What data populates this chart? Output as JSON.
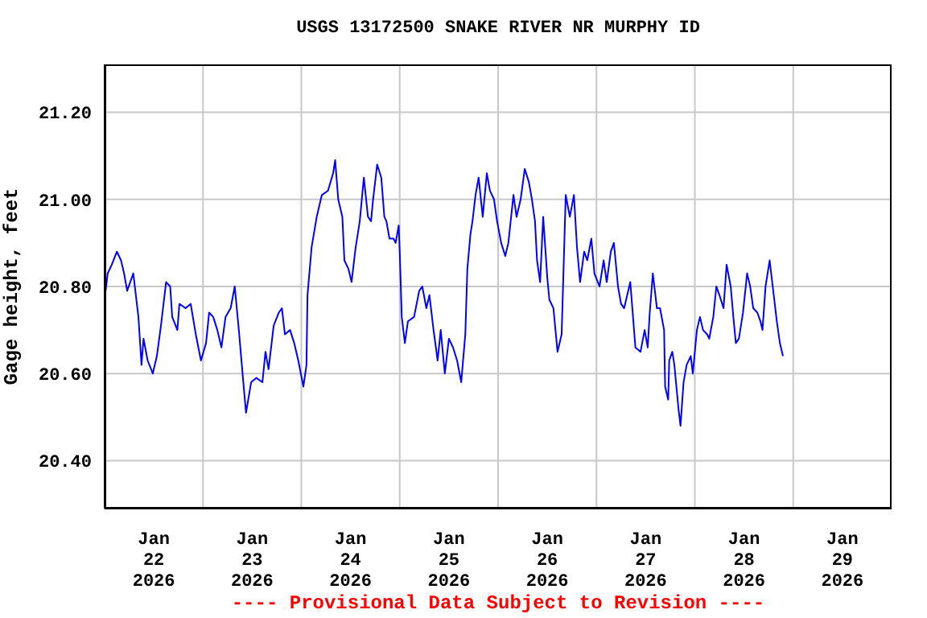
{
  "chart_data": {
    "type": "line",
    "title": "USGS 13172500 SNAKE RIVER NR MURPHY ID",
    "ylabel": "Gage height, feet",
    "annotations": [
      "---- Provisional Data Subject to Revision ----"
    ],
    "xlim": [
      "2026-01-22",
      "2026-01-30"
    ],
    "xticks": [
      {
        "value": "2026-01-22T12:00",
        "label": "Jan\n22\n2026"
      },
      {
        "value": "2026-01-23T00:00",
        "label": null
      },
      {
        "value": "2026-01-23T12:00",
        "label": "Jan\n23\n2026"
      },
      {
        "value": "2026-01-24T00:00",
        "label": null
      },
      {
        "value": "2026-01-24T12:00",
        "label": "Jan\n24\n2026"
      },
      {
        "value": "2026-01-25T00:00",
        "label": null
      },
      {
        "value": "2026-01-25T12:00",
        "label": "Jan\n25\n2026"
      },
      {
        "value": "2026-01-26T00:00",
        "label": null
      },
      {
        "value": "2026-01-26T12:00",
        "label": "Jan\n26\n2026"
      },
      {
        "value": "2026-01-27T00:00",
        "label": null
      },
      {
        "value": "2026-01-27T12:00",
        "label": "Jan\n27\n2026"
      },
      {
        "value": "2026-01-28T00:00",
        "label": null
      },
      {
        "value": "2026-01-28T12:00",
        "label": "Jan\n28\n2026"
      },
      {
        "value": "2026-01-29T00:00",
        "label": null
      },
      {
        "value": "2026-01-29T12:00",
        "label": "Jan\n29\n2026"
      }
    ],
    "ylim": [
      20.29,
      21.31
    ],
    "yticks": [
      {
        "value": 20.4,
        "label": "20.40"
      },
      {
        "value": 20.6,
        "label": "20.60"
      },
      {
        "value": 20.8,
        "label": "20.80"
      },
      {
        "value": 21.0,
        "label": "21.00"
      },
      {
        "value": 21.2,
        "label": "21.20"
      }
    ],
    "grid": true,
    "marker": "none",
    "line_style": "solid",
    "series": [
      {
        "color": "#0000ff",
        "x": [
          "2026-01-22T00:15",
          "2026-01-22T00:45",
          "2026-01-22T01:45",
          "2026-01-22T03:00",
          "2026-01-22T04:00",
          "2026-01-22T04:45",
          "2026-01-22T05:30",
          "2026-01-22T06:15",
          "2026-01-22T07:00",
          "2026-01-22T07:30",
          "2026-01-22T08:15",
          "2026-01-22T09:00",
          "2026-01-22T09:30",
          "2026-01-22T10:30",
          "2026-01-22T11:45",
          "2026-01-22T12:45",
          "2026-01-22T13:45",
          "2026-01-22T15:00",
          "2026-01-22T16:00",
          "2026-01-22T16:30",
          "2026-01-22T17:45",
          "2026-01-22T18:15",
          "2026-01-22T19:45",
          "2026-01-22T21:00",
          "2026-01-22T22:15",
          "2026-01-22T23:30",
          "2026-01-23T00:45",
          "2026-01-23T01:30",
          "2026-01-23T02:30",
          "2026-01-23T03:30",
          "2026-01-23T04:30",
          "2026-01-23T05:30",
          "2026-01-23T06:45",
          "2026-01-23T07:45",
          "2026-01-23T08:45",
          "2026-01-23T09:45",
          "2026-01-23T10:30",
          "2026-01-23T11:45",
          "2026-01-23T13:00",
          "2026-01-23T14:30",
          "2026-01-23T15:15",
          "2026-01-23T16:00",
          "2026-01-23T17:15",
          "2026-01-23T18:30",
          "2026-01-23T19:15",
          "2026-01-23T20:00",
          "2026-01-23T21:15",
          "2026-01-23T22:15",
          "2026-01-23T23:15",
          "2026-01-24T00:30",
          "2026-01-24T01:15",
          "2026-01-24T01:30",
          "2026-01-24T02:30",
          "2026-01-24T03:45",
          "2026-01-24T05:00",
          "2026-01-24T06:30",
          "2026-01-24T07:45",
          "2026-01-24T08:15",
          "2026-01-24T09:00",
          "2026-01-24T10:00",
          "2026-01-24T10:30",
          "2026-01-24T11:30",
          "2026-01-24T12:15",
          "2026-01-24T13:15",
          "2026-01-24T14:15",
          "2026-01-24T15:15",
          "2026-01-24T16:15",
          "2026-01-24T17:00",
          "2026-01-24T17:30",
          "2026-01-24T18:30",
          "2026-01-24T19:30",
          "2026-01-24T20:15",
          "2026-01-24T20:45",
          "2026-01-24T21:30",
          "2026-01-24T22:30",
          "2026-01-24T23:00",
          "2026-01-24T23:45",
          "2026-01-25T00:00",
          "2026-01-25T00:30",
          "2026-01-25T01:15",
          "2026-01-25T02:00",
          "2026-01-25T03:30",
          "2026-01-25T04:45",
          "2026-01-25T05:30",
          "2026-01-25T06:30",
          "2026-01-25T07:15",
          "2026-01-25T08:15",
          "2026-01-25T09:15",
          "2026-01-25T10:00",
          "2026-01-25T11:00",
          "2026-01-25T12:00",
          "2026-01-25T13:00",
          "2026-01-25T14:00",
          "2026-01-25T15:00",
          "2026-01-25T16:00",
          "2026-01-25T16:30",
          "2026-01-25T17:15",
          "2026-01-25T17:45",
          "2026-01-25T18:30",
          "2026-01-25T19:15",
          "2026-01-25T20:15",
          "2026-01-25T21:15",
          "2026-01-25T22:00",
          "2026-01-25T23:00",
          "2026-01-25T23:45",
          "2026-01-26T00:45",
          "2026-01-26T01:45",
          "2026-01-26T02:30",
          "2026-01-26T03:45",
          "2026-01-26T04:30",
          "2026-01-26T05:30",
          "2026-01-26T06:30",
          "2026-01-26T07:30",
          "2026-01-26T08:15",
          "2026-01-26T09:00",
          "2026-01-26T09:30",
          "2026-01-26T10:15",
          "2026-01-26T11:00",
          "2026-01-26T12:00",
          "2026-01-26T12:30",
          "2026-01-26T13:30",
          "2026-01-26T14:30",
          "2026-01-26T15:30",
          "2026-01-26T16:30",
          "2026-01-26T17:30",
          "2026-01-26T18:30",
          "2026-01-26T19:15",
          "2026-01-26T20:00",
          "2026-01-26T21:00",
          "2026-01-26T21:45",
          "2026-01-26T22:45",
          "2026-01-26T23:30",
          "2026-01-27T00:45",
          "2026-01-27T01:45",
          "2026-01-27T02:30",
          "2026-01-27T03:30",
          "2026-01-27T04:15",
          "2026-01-27T05:15",
          "2026-01-27T06:00",
          "2026-01-27T06:45",
          "2026-01-27T07:30",
          "2026-01-27T08:15",
          "2026-01-27T09:15",
          "2026-01-27T09:30",
          "2026-01-27T10:45",
          "2026-01-27T11:45",
          "2026-01-27T12:30",
          "2026-01-27T13:00",
          "2026-01-27T13:45",
          "2026-01-27T14:45",
          "2026-01-27T15:30",
          "2026-01-27T16:30",
          "2026-01-27T16:45",
          "2026-01-27T17:30",
          "2026-01-27T17:45",
          "2026-01-27T18:30",
          "2026-01-27T19:00",
          "2026-01-27T20:00",
          "2026-01-27T20:30",
          "2026-01-27T21:15",
          "2026-01-27T22:00",
          "2026-01-27T23:00",
          "2026-01-27T23:30",
          "2026-01-28T00:30",
          "2026-01-28T01:15",
          "2026-01-28T02:00",
          "2026-01-28T03:00",
          "2026-01-28T03:30",
          "2026-01-28T04:30",
          "2026-01-28T05:15",
          "2026-01-28T06:00",
          "2026-01-28T07:00",
          "2026-01-28T07:45",
          "2026-01-28T08:45",
          "2026-01-28T09:30",
          "2026-01-28T10:00",
          "2026-01-28T10:45",
          "2026-01-28T11:45",
          "2026-01-28T12:45",
          "2026-01-28T13:30",
          "2026-01-28T14:15",
          "2026-01-28T15:15",
          "2026-01-28T16:00",
          "2026-01-28T16:30",
          "2026-01-28T17:15",
          "2026-01-28T18:15",
          "2026-01-28T19:00",
          "2026-01-28T20:00",
          "2026-01-28T20:45",
          "2026-01-28T21:30"
        ],
        "values": [
          20.79,
          20.83,
          20.85,
          20.88,
          20.86,
          20.83,
          20.79,
          20.81,
          20.83,
          20.79,
          20.73,
          20.62,
          20.68,
          20.63,
          20.6,
          20.64,
          20.71,
          20.81,
          20.8,
          20.73,
          20.7,
          20.76,
          20.75,
          20.76,
          20.69,
          20.63,
          20.67,
          20.74,
          20.73,
          20.7,
          20.66,
          20.73,
          20.75,
          20.8,
          20.7,
          20.59,
          20.51,
          20.58,
          20.59,
          20.58,
          20.65,
          20.61,
          20.71,
          20.74,
          20.75,
          20.69,
          20.7,
          20.67,
          20.63,
          20.57,
          20.62,
          20.78,
          20.89,
          20.96,
          21.01,
          21.02,
          21.06,
          21.09,
          21.0,
          20.96,
          20.86,
          20.84,
          20.81,
          20.89,
          20.95,
          21.05,
          20.96,
          20.95,
          21.0,
          21.08,
          21.05,
          20.96,
          20.95,
          20.91,
          20.91,
          20.9,
          20.94,
          20.88,
          20.73,
          20.67,
          20.72,
          20.73,
          20.79,
          20.8,
          20.75,
          20.78,
          20.7,
          20.63,
          20.7,
          20.6,
          20.68,
          20.66,
          20.63,
          20.58,
          20.69,
          20.84,
          20.92,
          20.95,
          21.01,
          21.05,
          20.96,
          21.06,
          21.02,
          21.0,
          20.95,
          20.9,
          20.87,
          20.9,
          21.01,
          20.96,
          21.0,
          21.07,
          21.04,
          21.0,
          20.95,
          20.86,
          20.81,
          20.96,
          20.82,
          20.77,
          20.75,
          20.65,
          20.69,
          21.01,
          20.96,
          21.01,
          20.89,
          20.81,
          20.88,
          20.86,
          20.91,
          20.83,
          20.8,
          20.86,
          20.81,
          20.88,
          20.9,
          20.8,
          20.76,
          20.75,
          20.78,
          20.81,
          20.69,
          20.66,
          20.65,
          20.7,
          20.66,
          20.74,
          20.83,
          20.75,
          20.75,
          20.7,
          20.57,
          20.54,
          20.63,
          20.65,
          20.62,
          20.52,
          20.48,
          20.58,
          20.62,
          20.64,
          20.6,
          20.7,
          20.73,
          20.7,
          20.69,
          20.68,
          20.73,
          20.8,
          20.78,
          20.75,
          20.85,
          20.8,
          20.72,
          20.67,
          20.68,
          20.74,
          20.83,
          20.8,
          20.75,
          20.74,
          20.72,
          20.7,
          20.8,
          20.86,
          20.8,
          20.72,
          20.67,
          20.64
        ]
      }
    ]
  }
}
